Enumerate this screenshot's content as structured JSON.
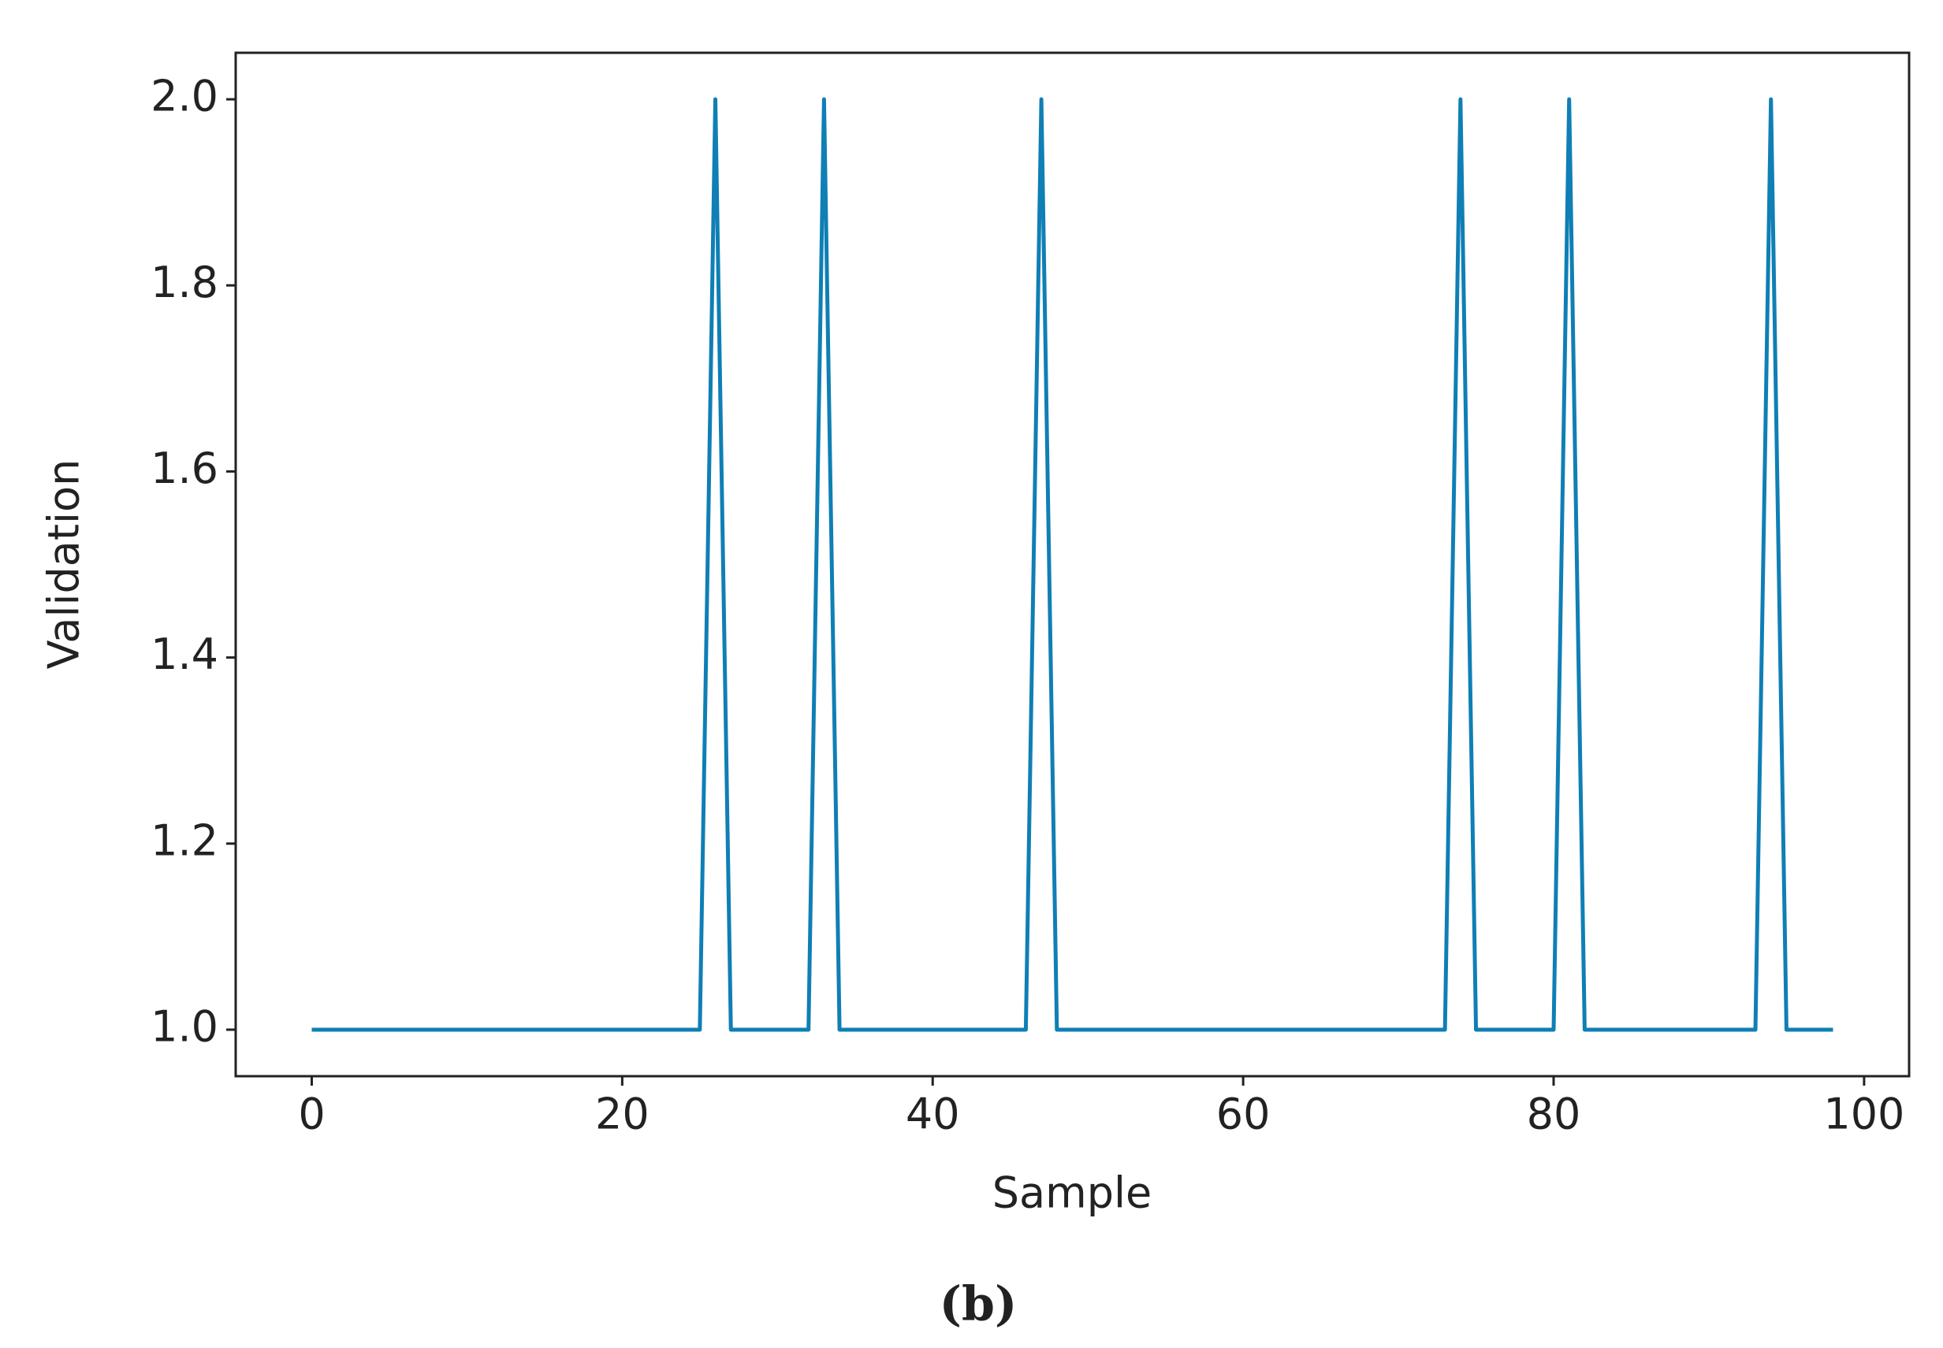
{
  "chart_data": {
    "type": "line",
    "x_label": "Sample",
    "y_label": "Validation",
    "caption": "(b)",
    "x": [
      0,
      1,
      2,
      3,
      4,
      5,
      6,
      7,
      8,
      9,
      10,
      11,
      12,
      13,
      14,
      15,
      16,
      17,
      18,
      19,
      20,
      21,
      22,
      23,
      24,
      25,
      26,
      27,
      28,
      29,
      30,
      31,
      32,
      33,
      34,
      35,
      36,
      37,
      38,
      39,
      40,
      41,
      42,
      43,
      44,
      45,
      46,
      47,
      48,
      49,
      50,
      51,
      52,
      53,
      54,
      55,
      56,
      57,
      58,
      59,
      60,
      61,
      62,
      63,
      64,
      65,
      66,
      67,
      68,
      69,
      70,
      71,
      72,
      73,
      74,
      75,
      76,
      77,
      78,
      79,
      80,
      81,
      82,
      83,
      84,
      85,
      86,
      87,
      88,
      89,
      90,
      91,
      92,
      93,
      94,
      95,
      96,
      97,
      98
    ],
    "values": [
      1,
      1,
      1,
      1,
      1,
      1,
      1,
      1,
      1,
      1,
      1,
      1,
      1,
      1,
      1,
      1,
      1,
      1,
      1,
      1,
      1,
      1,
      1,
      1,
      1,
      1,
      2,
      1,
      1,
      1,
      1,
      1,
      1,
      2,
      1,
      1,
      1,
      1,
      1,
      1,
      1,
      1,
      1,
      1,
      1,
      1,
      1,
      2,
      1,
      1,
      1,
      1,
      1,
      1,
      1,
      1,
      1,
      1,
      1,
      1,
      1,
      1,
      1,
      1,
      1,
      1,
      1,
      1,
      1,
      1,
      1,
      1,
      1,
      1,
      2,
      1,
      1,
      1,
      1,
      1,
      1,
      2,
      1,
      1,
      1,
      1,
      1,
      1,
      1,
      1,
      1,
      1,
      1,
      1,
      2,
      1,
      1,
      1,
      1
    ],
    "color": "#0f7fb5",
    "xlim": [
      -4.9,
      102.9
    ],
    "ylim": [
      0.95,
      2.05
    ],
    "xticks": [
      0,
      20,
      40,
      60,
      80,
      100
    ],
    "yticks": [
      {
        "value": 1.0,
        "label": "1.0"
      },
      1.2,
      1.4,
      1.6,
      1.8,
      {
        "value": 2.0,
        "label": "2.0"
      }
    ],
    "grid": false
  }
}
